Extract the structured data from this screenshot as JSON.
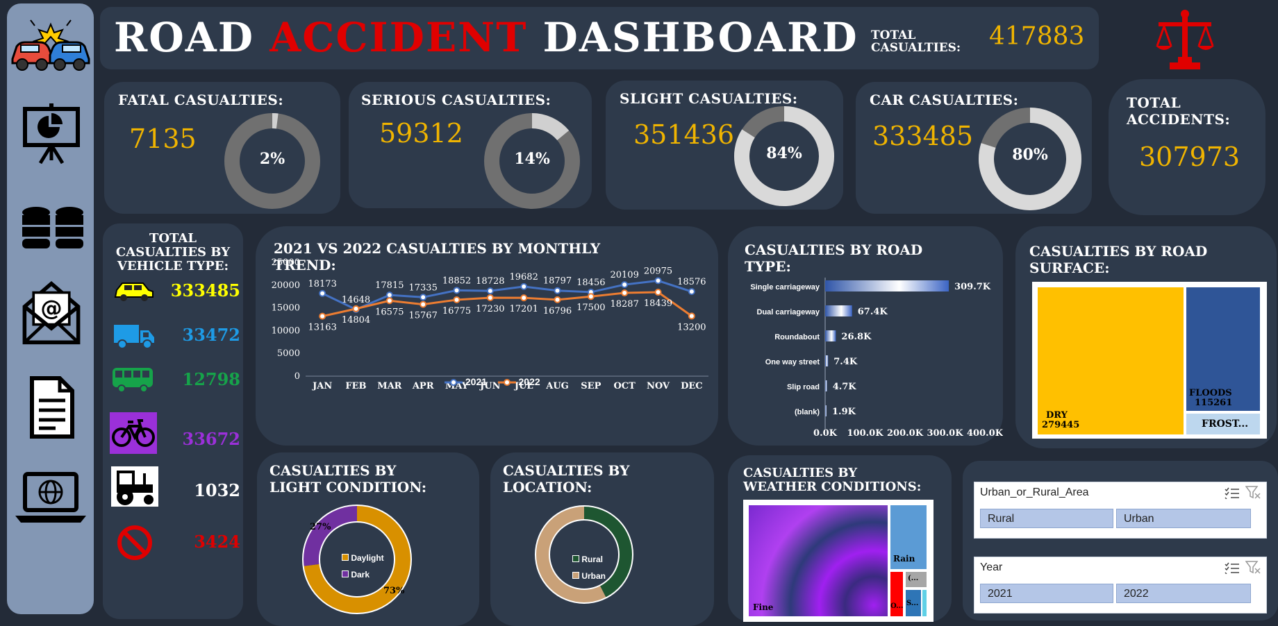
{
  "header": {
    "title_part1": "Road ",
    "title_part2": "Accident",
    "title_part3": " Dashboard",
    "total_casualties_label_1": "Total",
    "total_casualties_label_2": "Casualties:",
    "total_casualties_value": "417883"
  },
  "kpis": {
    "fatal": {
      "label": "Fatal Casualties:",
      "value": "7135",
      "pct_text": "2%",
      "pct": 0.02
    },
    "serious": {
      "label": "Serious Casualties:",
      "value": "59312",
      "pct_text": "14%",
      "pct": 0.14
    },
    "slight": {
      "label": "Slight Casualties:",
      "value": "351436",
      "pct_text": "84%",
      "pct": 0.84
    },
    "car": {
      "label": "Car Casualties:",
      "value": "333485",
      "pct_text": "80%",
      "pct": 0.8
    },
    "accidents": {
      "label_1": "Total",
      "label_2": "Accidents:",
      "value": "307973"
    }
  },
  "vehicle": {
    "title_1": "Total",
    "title_2": "Casualties by",
    "title_3": "Vehicle Type:",
    "items": [
      {
        "icon": "car-icon",
        "value": "333485",
        "color": "#ffff00"
      },
      {
        "icon": "truck-icon",
        "value": "33472",
        "color": "#1e9be6"
      },
      {
        "icon": "bus-icon",
        "value": "12798",
        "color": "#16a34a"
      },
      {
        "icon": "bicycle-icon",
        "value": "33672",
        "color": "#9b30d9"
      },
      {
        "icon": "tractor-icon",
        "value": "1032",
        "color": "#ffffff"
      },
      {
        "icon": "no-entry-icon",
        "value": "3424",
        "color": "#e00000"
      }
    ]
  },
  "monthly": {
    "title_1": "2021 vs 2022 Casualties by Monthly",
    "title_2": "Trend:",
    "legend_2021": "2021",
    "legend_2022": "2022"
  },
  "road_type": {
    "title_1": "Casualties by Road",
    "title_2": "Type:"
  },
  "surface": {
    "title_1": "Casualties by Road",
    "title_2": "Surface:"
  },
  "light": {
    "title_1": "Casualties by",
    "title_2": "Light Condition:"
  },
  "location": {
    "title_1": "Casualties by",
    "title_2": "Location:"
  },
  "weather": {
    "title_1": "Casualties by",
    "title_2": "Weather Conditions:"
  },
  "slicers": {
    "area": {
      "title": "Urban_or_Rural_Area",
      "options": [
        "Rural",
        "Urban"
      ]
    },
    "year": {
      "title": "Year",
      "options": [
        "2021",
        "2022"
      ]
    }
  },
  "chart_data": [
    {
      "type": "line",
      "categories": [
        "JAN",
        "FEB",
        "MAR",
        "APR",
        "MAY",
        "JUN",
        "JUL",
        "AUG",
        "SEP",
        "OCT",
        "NOV",
        "DEC"
      ],
      "series": [
        {
          "name": "2021",
          "values": [
            18173,
            14648,
            17815,
            17335,
            18852,
            18728,
            19682,
            18797,
            18456,
            20109,
            20975,
            18576
          ],
          "color": "#4472c4"
        },
        {
          "name": "2022",
          "values": [
            13163,
            14804,
            16575,
            15767,
            16775,
            17230,
            17201,
            16796,
            17500,
            18287,
            18439,
            13200
          ],
          "color": "#ed7d31"
        }
      ],
      "ylim": [
        0,
        25000
      ],
      "yticks": [
        0,
        5000,
        10000,
        15000,
        20000,
        25000
      ],
      "title": "2021 vs 2022 Casualties by Monthly Trend:",
      "legend": "bottom-center"
    },
    {
      "type": "bar",
      "orientation": "horizontal",
      "categories": [
        "Single carriageway",
        "Dual carriageway",
        "Roundabout",
        "One way street",
        "Slip road",
        "(blank)"
      ],
      "values": [
        309700,
        67400,
        26800,
        7400,
        4700,
        1900
      ],
      "labels": [
        "309.7K",
        "67.4K",
        "26.8K",
        "7.4K",
        "4.7K",
        "1.9K"
      ],
      "xticks": [
        "0.0K",
        "100.0K",
        "200.0K",
        "300.0K",
        "400.0K"
      ],
      "xlim": [
        0,
        400000
      ],
      "title": "Casualties by Road Type:"
    },
    {
      "type": "treemap",
      "items": [
        {
          "label": "DRY",
          "value": 279445,
          "color": "#ffc000"
        },
        {
          "label": "FLOODS",
          "value": 115261,
          "color": "#2f5597"
        },
        {
          "label": "FROST...",
          "color": "#bdd7ee"
        }
      ],
      "title": "Casualties by Road Surface:"
    },
    {
      "type": "pie",
      "donut": true,
      "labels": [
        "Daylight",
        "Dark"
      ],
      "values": [
        73,
        27
      ],
      "value_labels": [
        "73%",
        "27%"
      ],
      "colors": [
        "#d89000",
        "#7030a0"
      ],
      "title": "Casualties by Light Condition:"
    },
    {
      "type": "pie",
      "donut": true,
      "labels": [
        "Rural",
        "Urban"
      ],
      "colors": [
        "#1e5631",
        "#c9a178"
      ],
      "title": "Casualties by Location:"
    },
    {
      "type": "treemap",
      "items": [
        {
          "label": "Fine",
          "color": "#a020f0"
        },
        {
          "label": "Rain",
          "color": "#5b9bd5"
        },
        {
          "label": "(...",
          "color": "#a6a6a6"
        },
        {
          "label": "O...",
          "color": "#ff0000"
        },
        {
          "label": "S...",
          "color": "#2e75b6"
        }
      ],
      "title": "Casualties by Weather Conditions:"
    }
  ]
}
